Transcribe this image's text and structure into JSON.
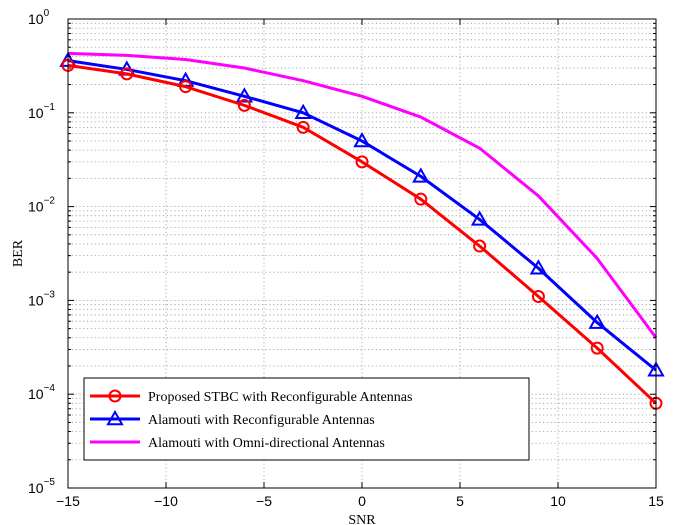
{
  "chart_data": {
    "type": "line",
    "title": "",
    "xlabel": "SNR",
    "ylabel": "BER",
    "xlim": [
      -15,
      15
    ],
    "ylim": [
      1e-05,
      1
    ],
    "yscale": "log",
    "grid": true,
    "legend_position": "bottom-left",
    "xticks": [
      -15,
      -10,
      -5,
      0,
      5,
      10,
      15
    ],
    "xtick_labels": [
      "−15",
      "−10",
      "−5",
      "0",
      "5",
      "10",
      "15"
    ],
    "yticks": [
      {
        "base": "10",
        "exp": "0"
      },
      {
        "base": "10",
        "exp": "−1"
      },
      {
        "base": "10",
        "exp": "−2"
      },
      {
        "base": "10",
        "exp": "−3"
      },
      {
        "base": "10",
        "exp": "−4"
      },
      {
        "base": "10",
        "exp": "−5"
      }
    ],
    "series": [
      {
        "name": "Proposed STBC with Reconfigurable Antennas",
        "color": "#ff0000",
        "marker": "circle",
        "x": [
          -15,
          -12,
          -9,
          -6,
          -3,
          0,
          3,
          6,
          9,
          12,
          15
        ],
        "y": [
          0.32,
          0.26,
          0.19,
          0.12,
          0.07,
          0.03,
          0.012,
          0.0038,
          0.0011,
          0.00031,
          8e-05
        ]
      },
      {
        "name": "Alamouti with Reconfigurable Antennas",
        "color": "#0000ff",
        "marker": "triangle",
        "x": [
          -15,
          -12,
          -9,
          -6,
          -3,
          0,
          3,
          6,
          9,
          12,
          15
        ],
        "y": [
          0.36,
          0.29,
          0.22,
          0.15,
          0.1,
          0.05,
          0.021,
          0.0073,
          0.0022,
          0.00058,
          0.00018
        ]
      },
      {
        "name": "Alamouti with Omni-directional Antennas",
        "color": "#ff00ff",
        "marker": "none",
        "x": [
          -15,
          -12,
          -9,
          -6,
          -3,
          0,
          3,
          6,
          9,
          12,
          15
        ],
        "y": [
          0.43,
          0.41,
          0.37,
          0.3,
          0.22,
          0.15,
          0.09,
          0.042,
          0.013,
          0.0028,
          0.0004
        ]
      }
    ]
  }
}
